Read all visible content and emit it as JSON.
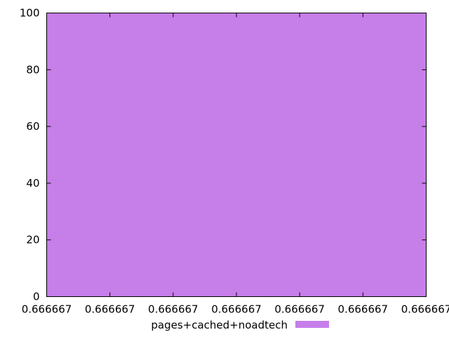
{
  "chart_data": {
    "type": "area",
    "x_tick_labels": [
      "0.666667",
      "0.666667",
      "0.666667",
      "0.666667",
      "0.666667",
      "0.666667",
      "0.666667"
    ],
    "y_ticks": [
      0,
      20,
      40,
      60,
      80,
      100
    ],
    "ylim": [
      0,
      100
    ],
    "series": [
      {
        "name": "pages+cached+noadtech",
        "color": "#c67ee9",
        "values": [
          100,
          100,
          100,
          100,
          100,
          100,
          100
        ]
      }
    ],
    "legend_placement": "bottom-center",
    "grid": false
  }
}
